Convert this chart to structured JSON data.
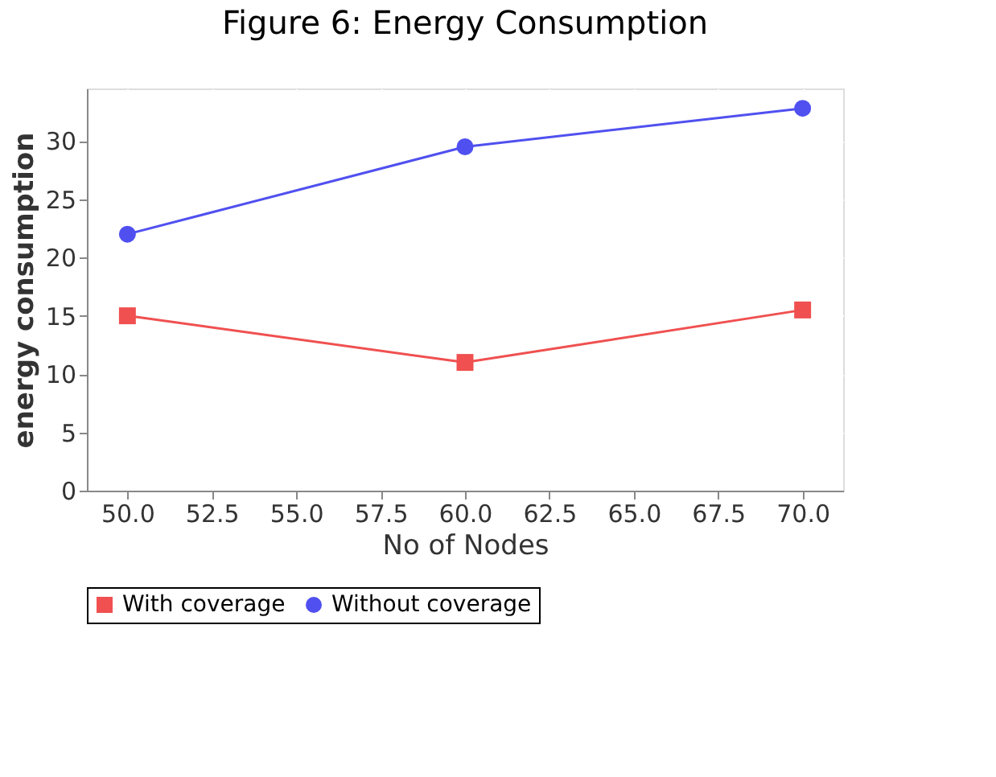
{
  "chart_data": {
    "type": "line",
    "title": "Figure 6: Energy Consumption",
    "xlabel": "No of Nodes",
    "ylabel": "energy consumption",
    "x": [
      50,
      60,
      70
    ],
    "series": [
      {
        "name": "With coverage",
        "color": "#f05050",
        "marker": "square",
        "values": [
          15,
          11,
          15.5
        ]
      },
      {
        "name": "Without coverage",
        "color": "#5050f0",
        "marker": "circle",
        "values": [
          22,
          29.5,
          32.8
        ]
      }
    ],
    "xlim": [
      48.8,
      71.2
    ],
    "ylim": [
      0,
      34.5
    ],
    "xticks": [
      {
        "value": 50,
        "label": "50.0"
      },
      {
        "value": 52.5,
        "label": "52.5"
      },
      {
        "value": 55,
        "label": "55.0"
      },
      {
        "value": 57.5,
        "label": "57.5"
      },
      {
        "value": 60,
        "label": "60.0"
      },
      {
        "value": 62.5,
        "label": "62.5"
      },
      {
        "value": 65,
        "label": "65.0"
      },
      {
        "value": 67.5,
        "label": "67.5"
      },
      {
        "value": 70,
        "label": "70.0"
      }
    ],
    "yticks": [
      0,
      5,
      10,
      15,
      20,
      25,
      30
    ],
    "grid": true,
    "legend": "bottom",
    "line_style": "solid"
  }
}
